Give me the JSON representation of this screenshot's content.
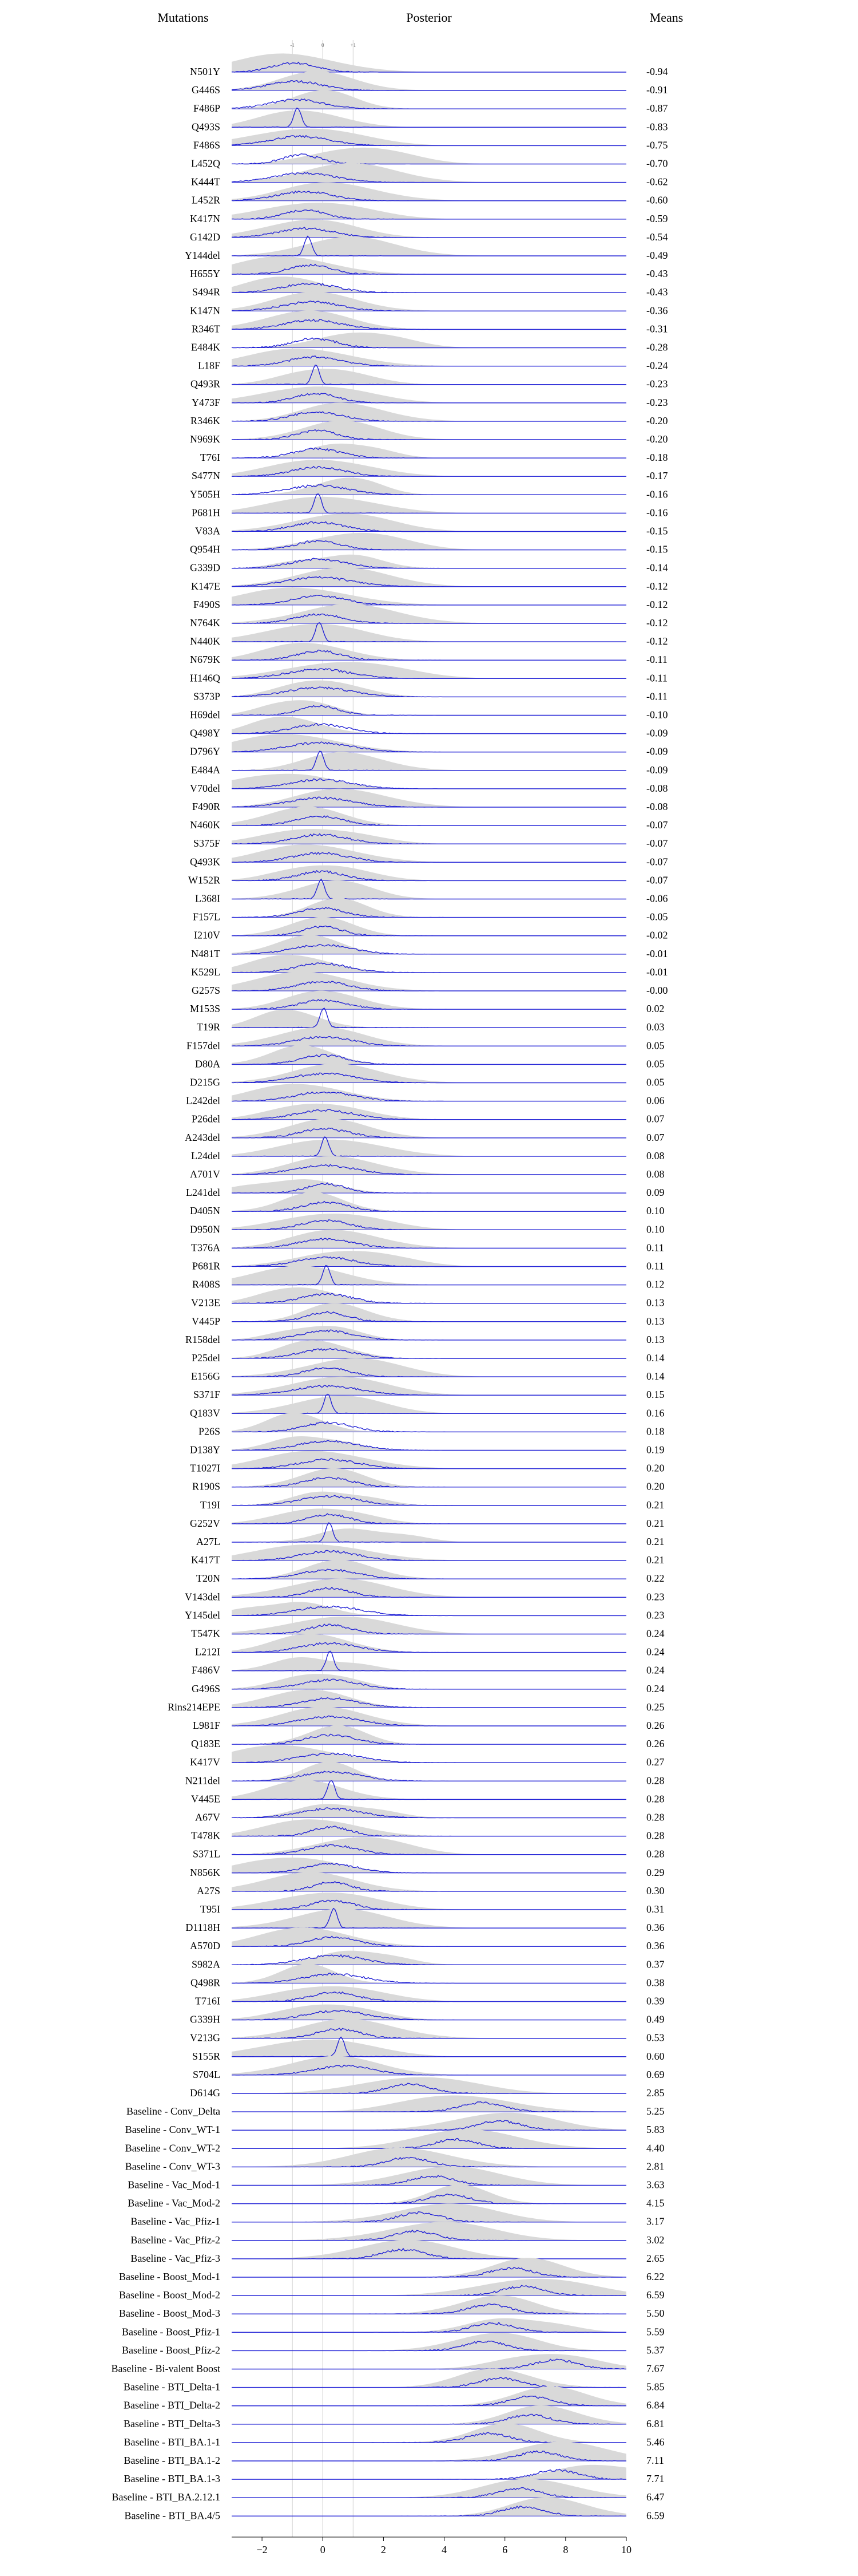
{
  "headers": {
    "mutations": "Mutations",
    "posterior": "Posterior",
    "means": "Means"
  },
  "colors": {
    "posterior_line": "#2323d6",
    "prior_fill": "#d9d9d9",
    "baseline": "#2323d6",
    "ref_line": "#cfcfcf"
  },
  "chart_data": {
    "type": "ridgeline",
    "xlim": [
      -3,
      10
    ],
    "xticks": [
      -2,
      0,
      2,
      4,
      6,
      8,
      10
    ],
    "ref_lines": [
      -1,
      0,
      1
    ],
    "ref_labels": [
      "-1",
      "0",
      "+1"
    ],
    "rows": [
      {
        "label": "N501Y",
        "mean": "-0.94",
        "m": -0.94
      },
      {
        "label": "G446S",
        "mean": "-0.91",
        "m": -0.91
      },
      {
        "label": "F486P",
        "mean": "-0.87",
        "m": -0.87
      },
      {
        "label": "Q493S",
        "mean": "-0.83",
        "m": -0.83
      },
      {
        "label": "F486S",
        "mean": "-0.75",
        "m": -0.75
      },
      {
        "label": "L452Q",
        "mean": "-0.70",
        "m": -0.7
      },
      {
        "label": "K444T",
        "mean": "-0.62",
        "m": -0.62
      },
      {
        "label": "L452R",
        "mean": "-0.60",
        "m": -0.6
      },
      {
        "label": "K417N",
        "mean": "-0.59",
        "m": -0.59
      },
      {
        "label": "G142D",
        "mean": "-0.54",
        "m": -0.54
      },
      {
        "label": "Y144del",
        "mean": "-0.49",
        "m": -0.49
      },
      {
        "label": "H655Y",
        "mean": "-0.43",
        "m": -0.43
      },
      {
        "label": "S494R",
        "mean": "-0.43",
        "m": -0.43
      },
      {
        "label": "K147N",
        "mean": "-0.36",
        "m": -0.36
      },
      {
        "label": "R346T",
        "mean": "-0.31",
        "m": -0.31
      },
      {
        "label": "E484K",
        "mean": "-0.28",
        "m": -0.28
      },
      {
        "label": "L18F",
        "mean": "-0.24",
        "m": -0.24
      },
      {
        "label": "Q493R",
        "mean": "-0.23",
        "m": -0.23
      },
      {
        "label": "Y473F",
        "mean": "-0.23",
        "m": -0.23
      },
      {
        "label": "R346K",
        "mean": "-0.20",
        "m": -0.2
      },
      {
        "label": "N969K",
        "mean": "-0.20",
        "m": -0.2
      },
      {
        "label": "T76I",
        "mean": "-0.18",
        "m": -0.18
      },
      {
        "label": "S477N",
        "mean": "-0.17",
        "m": -0.17
      },
      {
        "label": "Y505H",
        "mean": "-0.16",
        "m": -0.16
      },
      {
        "label": "P681H",
        "mean": "-0.16",
        "m": -0.16
      },
      {
        "label": "V83A",
        "mean": "-0.15",
        "m": -0.15
      },
      {
        "label": "Q954H",
        "mean": "-0.15",
        "m": -0.15
      },
      {
        "label": "G339D",
        "mean": "-0.14",
        "m": -0.14
      },
      {
        "label": "K147E",
        "mean": "-0.12",
        "m": -0.12
      },
      {
        "label": "F490S",
        "mean": "-0.12",
        "m": -0.12
      },
      {
        "label": "N764K",
        "mean": "-0.12",
        "m": -0.12
      },
      {
        "label": "N440K",
        "mean": "-0.12",
        "m": -0.12
      },
      {
        "label": "N679K",
        "mean": "-0.11",
        "m": -0.11
      },
      {
        "label": "H146Q",
        "mean": "-0.11",
        "m": -0.11
      },
      {
        "label": "S373P",
        "mean": "-0.11",
        "m": -0.11
      },
      {
        "label": "H69del",
        "mean": "-0.10",
        "m": -0.1
      },
      {
        "label": "Q498Y",
        "mean": "-0.09",
        "m": -0.09
      },
      {
        "label": "D796Y",
        "mean": "-0.09",
        "m": -0.09
      },
      {
        "label": "E484A",
        "mean": "-0.09",
        "m": -0.09
      },
      {
        "label": "V70del",
        "mean": "-0.08",
        "m": -0.08
      },
      {
        "label": "F490R",
        "mean": "-0.08",
        "m": -0.08
      },
      {
        "label": "N460K",
        "mean": "-0.07",
        "m": -0.07
      },
      {
        "label": "S375F",
        "mean": "-0.07",
        "m": -0.07
      },
      {
        "label": "Q493K",
        "mean": "-0.07",
        "m": -0.07
      },
      {
        "label": "W152R",
        "mean": "-0.07",
        "m": -0.07
      },
      {
        "label": "L368I",
        "mean": "-0.06",
        "m": -0.06
      },
      {
        "label": "F157L",
        "mean": "-0.05",
        "m": -0.05
      },
      {
        "label": "I210V",
        "mean": "-0.02",
        "m": -0.02
      },
      {
        "label": "N481T",
        "mean": "-0.01",
        "m": -0.01
      },
      {
        "label": "K529L",
        "mean": "-0.01",
        "m": -0.01
      },
      {
        "label": "G257S",
        "mean": "-0.00",
        "m": -0.0
      },
      {
        "label": "M153S",
        "mean": "0.02",
        "m": 0.02
      },
      {
        "label": "T19R",
        "mean": "0.03",
        "m": 0.03
      },
      {
        "label": "F157del",
        "mean": "0.05",
        "m": 0.05
      },
      {
        "label": "D80A",
        "mean": "0.05",
        "m": 0.05
      },
      {
        "label": "D215G",
        "mean": "0.05",
        "m": 0.05
      },
      {
        "label": "L242del",
        "mean": "0.06",
        "m": 0.06
      },
      {
        "label": "P26del",
        "mean": "0.07",
        "m": 0.07
      },
      {
        "label": "A243del",
        "mean": "0.07",
        "m": 0.07
      },
      {
        "label": "L24del",
        "mean": "0.08",
        "m": 0.08
      },
      {
        "label": "A701V",
        "mean": "0.08",
        "m": 0.08
      },
      {
        "label": "L241del",
        "mean": "0.09",
        "m": 0.09
      },
      {
        "label": "D405N",
        "mean": "0.10",
        "m": 0.1
      },
      {
        "label": "D950N",
        "mean": "0.10",
        "m": 0.1
      },
      {
        "label": "T376A",
        "mean": "0.11",
        "m": 0.11
      },
      {
        "label": "P681R",
        "mean": "0.11",
        "m": 0.11
      },
      {
        "label": "R408S",
        "mean": "0.12",
        "m": 0.12
      },
      {
        "label": "V213E",
        "mean": "0.13",
        "m": 0.13
      },
      {
        "label": "V445P",
        "mean": "0.13",
        "m": 0.13
      },
      {
        "label": "R158del",
        "mean": "0.13",
        "m": 0.13
      },
      {
        "label": "P25del",
        "mean": "0.14",
        "m": 0.14
      },
      {
        "label": "E156G",
        "mean": "0.14",
        "m": 0.14
      },
      {
        "label": "S371F",
        "mean": "0.15",
        "m": 0.15
      },
      {
        "label": "Q183V",
        "mean": "0.16",
        "m": 0.16
      },
      {
        "label": "P26S",
        "mean": "0.18",
        "m": 0.18
      },
      {
        "label": "D138Y",
        "mean": "0.19",
        "m": 0.19
      },
      {
        "label": "T1027I",
        "mean": "0.20",
        "m": 0.2
      },
      {
        "label": "R190S",
        "mean": "0.20",
        "m": 0.2
      },
      {
        "label": "T19I",
        "mean": "0.21",
        "m": 0.21
      },
      {
        "label": "G252V",
        "mean": "0.21",
        "m": 0.21
      },
      {
        "label": "A27L",
        "mean": "0.21",
        "m": 0.21
      },
      {
        "label": "K417T",
        "mean": "0.21",
        "m": 0.21
      },
      {
        "label": "T20N",
        "mean": "0.22",
        "m": 0.22
      },
      {
        "label": "V143del",
        "mean": "0.23",
        "m": 0.23
      },
      {
        "label": "Y145del",
        "mean": "0.23",
        "m": 0.23
      },
      {
        "label": "T547K",
        "mean": "0.24",
        "m": 0.24
      },
      {
        "label": "L212I",
        "mean": "0.24",
        "m": 0.24
      },
      {
        "label": "F486V",
        "mean": "0.24",
        "m": 0.24
      },
      {
        "label": "G496S",
        "mean": "0.24",
        "m": 0.24
      },
      {
        "label": "Rins214EPE",
        "mean": "0.25",
        "m": 0.25
      },
      {
        "label": "L981F",
        "mean": "0.26",
        "m": 0.26
      },
      {
        "label": "Q183E",
        "mean": "0.26",
        "m": 0.26
      },
      {
        "label": "K417V",
        "mean": "0.27",
        "m": 0.27
      },
      {
        "label": "N211del",
        "mean": "0.28",
        "m": 0.28
      },
      {
        "label": "V445E",
        "mean": "0.28",
        "m": 0.28
      },
      {
        "label": "A67V",
        "mean": "0.28",
        "m": 0.28
      },
      {
        "label": "T478K",
        "mean": "0.28",
        "m": 0.28
      },
      {
        "label": "S371L",
        "mean": "0.28",
        "m": 0.28
      },
      {
        "label": "N856K",
        "mean": "0.29",
        "m": 0.29
      },
      {
        "label": "A27S",
        "mean": "0.30",
        "m": 0.3
      },
      {
        "label": "T95I",
        "mean": "0.31",
        "m": 0.31
      },
      {
        "label": "D1118H",
        "mean": "0.36",
        "m": 0.36
      },
      {
        "label": "A570D",
        "mean": "0.36",
        "m": 0.36
      },
      {
        "label": "S982A",
        "mean": "0.37",
        "m": 0.37
      },
      {
        "label": "Q498R",
        "mean": "0.38",
        "m": 0.38
      },
      {
        "label": "T716I",
        "mean": "0.39",
        "m": 0.39
      },
      {
        "label": "G339H",
        "mean": "0.49",
        "m": 0.49
      },
      {
        "label": "V213G",
        "mean": "0.53",
        "m": 0.53
      },
      {
        "label": "S155R",
        "mean": "0.60",
        "m": 0.6
      },
      {
        "label": "S704L",
        "mean": "0.69",
        "m": 0.69
      },
      {
        "label": "D614G",
        "mean": "2.85",
        "m": 2.85
      },
      {
        "label": "Baseline - Conv_Delta",
        "mean": "5.25",
        "m": 5.25
      },
      {
        "label": "Baseline - Conv_WT-1",
        "mean": "5.83",
        "m": 5.83
      },
      {
        "label": "Baseline - Conv_WT-2",
        "mean": "4.40",
        "m": 4.4
      },
      {
        "label": "Baseline - Conv_WT-3",
        "mean": "2.81",
        "m": 2.81
      },
      {
        "label": "Baseline - Vac_Mod-1",
        "mean": "3.63",
        "m": 3.63
      },
      {
        "label": "Baseline - Vac_Mod-2",
        "mean": "4.15",
        "m": 4.15
      },
      {
        "label": "Baseline - Vac_Pfiz-1",
        "mean": "3.17",
        "m": 3.17
      },
      {
        "label": "Baseline - Vac_Pfiz-2",
        "mean": "3.02",
        "m": 3.02
      },
      {
        "label": "Baseline - Vac_Pfiz-3",
        "mean": "2.65",
        "m": 2.65
      },
      {
        "label": "Baseline - Boost_Mod-1",
        "mean": "6.22",
        "m": 6.22
      },
      {
        "label": "Baseline - Boost_Mod-2",
        "mean": "6.59",
        "m": 6.59
      },
      {
        "label": "Baseline - Boost_Mod-3",
        "mean": "5.50",
        "m": 5.5
      },
      {
        "label": "Baseline - Boost_Pfiz-1",
        "mean": "5.59",
        "m": 5.59
      },
      {
        "label": "Baseline - Boost_Pfiz-2",
        "mean": "5.37",
        "m": 5.37
      },
      {
        "label": "Baseline - Bi-valent Boost",
        "mean": "7.67",
        "m": 7.67
      },
      {
        "label": "Baseline - BTI_Delta-1",
        "mean": "5.85",
        "m": 5.85
      },
      {
        "label": "Baseline - BTI_Delta-2",
        "mean": "6.84",
        "m": 6.84
      },
      {
        "label": "Baseline - BTI_Delta-3",
        "mean": "6.81",
        "m": 6.81
      },
      {
        "label": "Baseline - BTI_BA.1-1",
        "mean": "5.46",
        "m": 5.46
      },
      {
        "label": "Baseline - BTI_BA.1-2",
        "mean": "7.11",
        "m": 7.11
      },
      {
        "label": "Baseline - BTI_BA.1-3",
        "mean": "7.71",
        "m": 7.71
      },
      {
        "label": "Baseline - BTI_BA.2.12.1",
        "mean": "6.47",
        "m": 6.47
      },
      {
        "label": "Baseline - BTI_BA.4/5",
        "mean": "6.59",
        "m": 6.59
      }
    ]
  }
}
